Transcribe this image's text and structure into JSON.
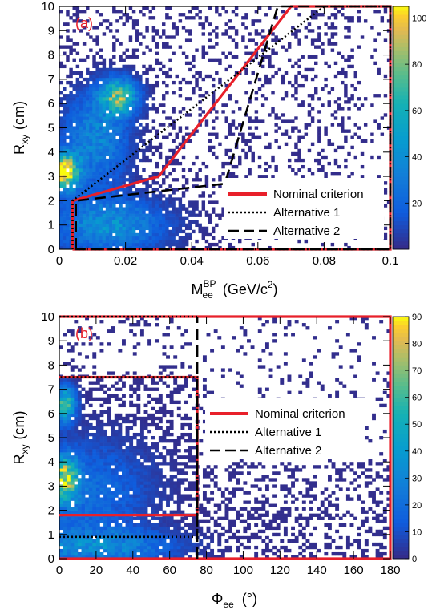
{
  "chart_data": [
    {
      "type": "heatmap",
      "panel_label": "(a)",
      "xlabel": "M",
      "xlabel_sub": "ee",
      "xlabel_sup": "BP",
      "xlabel_unit": "(GeV/c",
      "xlabel_unit_sup": "2",
      "xlabel_unit_close": ")",
      "ylabel": "R",
      "ylabel_sub": "xy",
      "ylabel_unit": "(cm)",
      "xlim": [
        0,
        0.1
      ],
      "ylim": [
        0,
        10
      ],
      "xticks": [
        "0",
        "0.02",
        "0.04",
        "0.06",
        "0.08",
        "0.1"
      ],
      "xtick_values": [
        0,
        0.02,
        0.04,
        0.06,
        0.08,
        0.1
      ],
      "yticks": [
        "0",
        "1",
        "2",
        "3",
        "4",
        "5",
        "6",
        "7",
        "8",
        "9",
        "10"
      ],
      "ztick_labels": [
        "20",
        "40",
        "60",
        "80",
        "100"
      ],
      "ztick_values": [
        20,
        40,
        60,
        80,
        100
      ],
      "zmax": 105,
      "density_blobs": [
        {
          "x": 0.0015,
          "y": 3.2,
          "sx": 0.003,
          "sy": 0.5,
          "amp": 105
        },
        {
          "x": 0.018,
          "y": 6.3,
          "sx": 0.004,
          "sy": 0.5,
          "amp": 70
        },
        {
          "x": 0.011,
          "y": 4.6,
          "sx": 0.007,
          "sy": 1.3,
          "amp": 35
        },
        {
          "x": 0.015,
          "y": 1.0,
          "sx": 0.012,
          "sy": 0.8,
          "amp": 40
        }
      ],
      "legend": [
        {
          "label": "Nominal criterion",
          "style": "solid",
          "color": "#e8202a"
        },
        {
          "label": "Alternative 1",
          "style": "dotted",
          "color": "#000000"
        },
        {
          "label": "Alternative 2",
          "style": "dashed",
          "color": "#000000"
        }
      ],
      "series": [
        {
          "name": "Nominal criterion",
          "points": [
            [
              0.004,
              0
            ],
            [
              0.004,
              2.0
            ],
            [
              0.03,
              3.0
            ],
            [
              0.05,
              6.5
            ],
            [
              0.062,
              8.6
            ],
            [
              0.07,
              10
            ],
            [
              0.1,
              10
            ],
            [
              0.1,
              0
            ],
            [
              0.004,
              0
            ]
          ]
        },
        {
          "name": "Alternative 1",
          "points": [
            [
              0.004,
              0
            ],
            [
              0.004,
              2.0
            ],
            [
              0.08,
              10
            ],
            [
              0.1,
              10
            ],
            [
              0.1,
              0
            ],
            [
              0.004,
              0
            ]
          ]
        },
        {
          "name": "Alternative 2",
          "points": [
            [
              0.005,
              0
            ],
            [
              0.005,
              2.0
            ],
            [
              0.05,
              2.7
            ],
            [
              0.066,
              10
            ],
            [
              0.1,
              10
            ],
            [
              0.1,
              0
            ],
            [
              0.005,
              0
            ]
          ]
        }
      ]
    },
    {
      "type": "heatmap",
      "panel_label": "(b)",
      "xlabel": "Φ",
      "xlabel_sub": "ee",
      "xlabel_unit": "(°)",
      "ylabel": "R",
      "ylabel_sub": "xy",
      "ylabel_unit": "(cm)",
      "xlim": [
        0,
        180
      ],
      "ylim": [
        0,
        10
      ],
      "xticks": [
        "0",
        "20",
        "40",
        "60",
        "80",
        "100",
        "120",
        "140",
        "160",
        "180"
      ],
      "xtick_values": [
        0,
        20,
        40,
        60,
        80,
        100,
        120,
        140,
        160,
        180
      ],
      "yticks": [
        "0",
        "1",
        "2",
        "3",
        "4",
        "5",
        "6",
        "7",
        "8",
        "9",
        "10"
      ],
      "ztick_labels": [
        "0",
        "10",
        "20",
        "30",
        "40",
        "50",
        "60",
        "70",
        "80",
        "90"
      ],
      "ztick_values": [
        0,
        10,
        20,
        30,
        40,
        50,
        60,
        70,
        80,
        90
      ],
      "zmax": 90,
      "density_blobs": [
        {
          "x": 3,
          "y": 3.3,
          "sx": 5,
          "sy": 0.6,
          "amp": 70
        },
        {
          "x": 3,
          "y": 6.4,
          "sx": 4,
          "sy": 0.5,
          "amp": 60
        },
        {
          "x": 20,
          "y": 0.5,
          "sx": 30,
          "sy": 0.5,
          "amp": 30
        },
        {
          "x": 15,
          "y": 2.8,
          "sx": 25,
          "sy": 1.5,
          "amp": 20
        }
      ],
      "legend": [
        {
          "label": "Nominal criterion",
          "style": "solid",
          "color": "#e8202a"
        },
        {
          "label": "Alternative 1",
          "style": "dotted",
          "color": "#000000"
        },
        {
          "label": "Alternative 2",
          "style": "dashed",
          "color": "#000000"
        }
      ],
      "series": [
        {
          "name": "Nominal criterion",
          "points": [
            [
              0,
              7.5
            ],
            [
              75,
              7.5
            ],
            [
              75,
              1.8
            ],
            [
              0,
              1.8
            ]
          ]
        },
        {
          "name": "Nominal criterion",
          "points": [
            [
              0,
              10
            ],
            [
              180,
              10
            ],
            [
              180,
              0
            ],
            [
              0,
              0
            ]
          ]
        },
        {
          "name": "Alternative 1",
          "points": [
            [
              0,
              0.9
            ],
            [
              75,
              0.9
            ],
            [
              75,
              7.5
            ],
            [
              0,
              7.5
            ]
          ]
        },
        {
          "name": "Alternative 1",
          "points": [
            [
              0,
              10
            ],
            [
              75,
              10
            ]
          ]
        },
        {
          "name": "Alternative 2",
          "points": [
            [
              75,
              0
            ],
            [
              75,
              10
            ]
          ]
        }
      ]
    }
  ]
}
